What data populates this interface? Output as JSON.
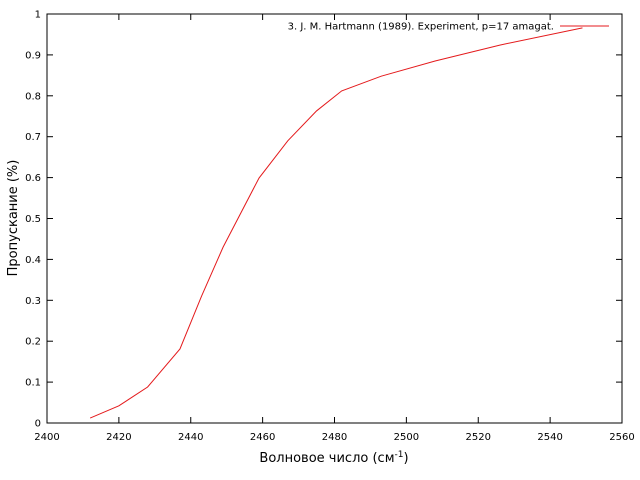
{
  "chart_data": {
    "type": "line",
    "xlabel": {
      "text": "Волновое число (см",
      "sup": "-1",
      "end": ")"
    },
    "ylabel": "Пропускание (%)",
    "x": [
      2412,
      2420,
      2428,
      2437,
      2443,
      2449,
      2459,
      2467,
      2475,
      2482,
      2493,
      2508,
      2526,
      2549
    ],
    "series": [
      {
        "name": "3. J. M. Hartmann (1989). Experiment, p=17 amagat.",
        "color": "#e41a1c",
        "values": [
          0.012,
          0.042,
          0.088,
          0.181,
          0.31,
          0.43,
          0.599,
          0.69,
          0.763,
          0.812,
          0.848,
          0.885,
          0.924,
          0.966
        ]
      }
    ],
    "xlim": [
      2400,
      2560
    ],
    "xticks": [
      2400,
      2420,
      2440,
      2460,
      2480,
      2500,
      2520,
      2540,
      2560
    ],
    "ylim": [
      0,
      1
    ],
    "yticks": [
      0,
      0.1,
      0.2,
      0.3,
      0.4,
      0.5,
      0.6,
      0.7,
      0.8,
      0.9,
      1
    ],
    "legend": "top-right"
  }
}
